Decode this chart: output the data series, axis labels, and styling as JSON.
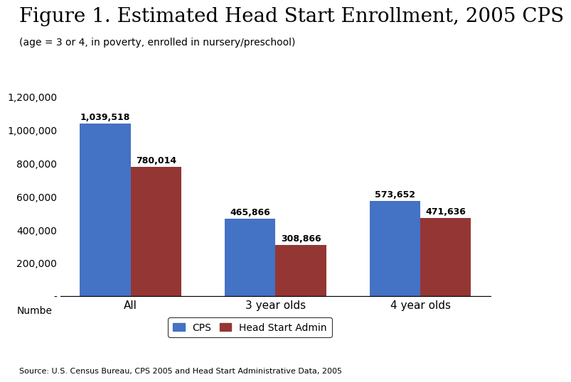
{
  "title": "Figure 1. Estimated Head Start Enrollment, 2005 CPS",
  "subtitle": "(age = 3 or 4, in poverty, enrolled in nursery/preschool)",
  "categories": [
    "All",
    "3 year olds",
    "4 year olds"
  ],
  "cps_values": [
    1039518,
    465866,
    573652
  ],
  "admin_values": [
    780014,
    308866,
    471636
  ],
  "cps_labels": [
    "1,039,518",
    "465,866",
    "573,652"
  ],
  "admin_labels": [
    "780,014",
    "308,866",
    "471,636"
  ],
  "cps_color": "#4472C4",
  "admin_color": "#943634",
  "xlabel": "Numbe",
  "ylim": [
    0,
    1200000
  ],
  "yticks": [
    0,
    200000,
    400000,
    600000,
    800000,
    1000000,
    1200000
  ],
  "ytick_labels": [
    "-",
    "200,000",
    "400,000",
    "600,000",
    "800,000",
    "1,000,000",
    "1,200,000"
  ],
  "legend_cps": "CPS",
  "legend_admin": "Head Start Admin",
  "source": "Source: U.S. Census Bureau, CPS 2005 and Head Start Administrative Data, 2005",
  "bar_width": 0.35,
  "title_fontsize": 20,
  "subtitle_fontsize": 10,
  "label_fontsize": 9,
  "tick_fontsize": 10,
  "legend_fontsize": 10,
  "source_fontsize": 8
}
